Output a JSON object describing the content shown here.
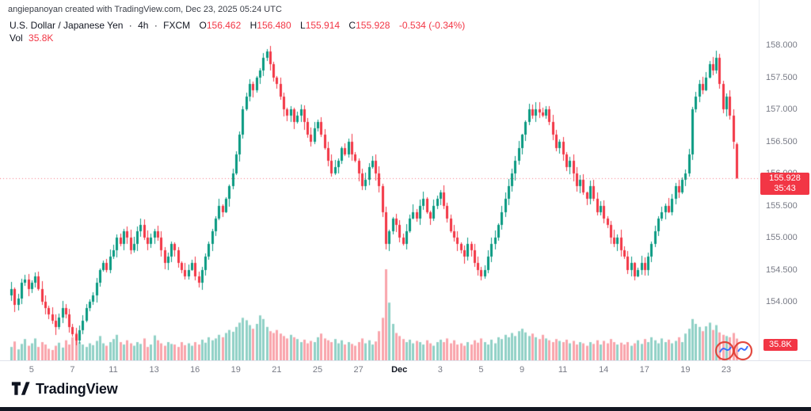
{
  "attribution": "angiepanoyan created with TradingView.com, Dec 23, 2025 05:24 UTC",
  "legend": {
    "symbol": "U.S. Dollar / Japanese Yen",
    "separator": "·",
    "interval": "4h",
    "exchange": "FXCM",
    "ohlc": {
      "o_label": "O",
      "o": "156.462",
      "h_label": "H",
      "h": "156.480",
      "l_label": "L",
      "l": "155.914",
      "c_label": "C",
      "c": "155.928"
    },
    "change": "-0.534 (-0.34%)",
    "vol_label": "Vol",
    "vol_value": "35.8K"
  },
  "price_badge": {
    "price": "155.928",
    "countdown": "35:43"
  },
  "volume_badge": "35.8K",
  "footer": {
    "brand": "TradingView"
  },
  "colors": {
    "up": "#089981",
    "down": "#f23645",
    "vol_up": "rgba(8,153,129,0.45)",
    "vol_down": "rgba(242,54,69,0.45)",
    "accent_red": "#f23645",
    "price_line": "rgba(242,54,69,0.65)",
    "axis_text": "#787b86",
    "text": "#131722"
  },
  "chart_data": {
    "type": "candlestick+volume",
    "title": "U.S. Dollar / Japanese Yen 4h FXCM",
    "symbol": "USD/JPY",
    "interval": "4h",
    "exchange": "FXCM",
    "ylim": [
      153.2,
      158.1
    ],
    "axis_ticks": [
      158.0,
      157.5,
      157.0,
      156.5,
      156.0,
      155.5,
      155.0,
      154.5,
      154.0
    ],
    "time_axis": [
      {
        "label": "5",
        "i": 6
      },
      {
        "label": "7",
        "i": 18
      },
      {
        "label": "11",
        "i": 30
      },
      {
        "label": "13",
        "i": 42
      },
      {
        "label": "16",
        "i": 54
      },
      {
        "label": "19",
        "i": 66
      },
      {
        "label": "21",
        "i": 78
      },
      {
        "label": "25",
        "i": 90
      },
      {
        "label": "27",
        "i": 102
      },
      {
        "label": "Dec",
        "i": 114,
        "bold": true
      },
      {
        "label": "3",
        "i": 126
      },
      {
        "label": "5",
        "i": 138
      },
      {
        "label": "9",
        "i": 150
      },
      {
        "label": "11",
        "i": 162
      },
      {
        "label": "14",
        "i": 174
      },
      {
        "label": "17",
        "i": 186
      },
      {
        "label": "19",
        "i": 198
      },
      {
        "label": "23",
        "i": 210
      }
    ],
    "first_open": 154.1,
    "closes": [
      154.2,
      153.95,
      154.05,
      154.3,
      154.35,
      154.2,
      154.3,
      154.4,
      154.2,
      154.0,
      153.9,
      153.8,
      153.7,
      153.6,
      153.75,
      153.9,
      153.8,
      153.6,
      153.5,
      153.4,
      153.55,
      153.7,
      153.9,
      154.0,
      154.1,
      154.3,
      154.5,
      154.6,
      154.5,
      154.7,
      154.8,
      155.0,
      154.9,
      155.1,
      155.0,
      154.8,
      154.9,
      155.1,
      155.2,
      155.0,
      154.9,
      155.0,
      155.1,
      155.0,
      154.8,
      154.6,
      154.7,
      154.9,
      154.8,
      154.6,
      154.5,
      154.4,
      154.5,
      154.6,
      154.4,
      154.3,
      154.5,
      154.7,
      154.9,
      155.1,
      155.3,
      155.5,
      155.4,
      155.6,
      155.8,
      156.0,
      156.3,
      156.6,
      157.0,
      157.2,
      157.4,
      157.3,
      157.5,
      157.6,
      157.8,
      157.9,
      157.7,
      157.5,
      157.4,
      157.2,
      157.0,
      156.9,
      157.0,
      156.8,
      156.9,
      157.0,
      156.8,
      156.6,
      156.5,
      156.7,
      156.8,
      156.6,
      156.4,
      156.2,
      156.0,
      156.1,
      156.2,
      156.4,
      156.3,
      156.5,
      156.3,
      156.2,
      156.0,
      155.8,
      155.9,
      156.1,
      156.2,
      156.0,
      155.8,
      155.4,
      154.9,
      155.1,
      155.3,
      155.2,
      155.0,
      154.9,
      155.1,
      155.3,
      155.4,
      155.3,
      155.5,
      155.6,
      155.4,
      155.3,
      155.5,
      155.6,
      155.7,
      155.5,
      155.3,
      155.1,
      155.0,
      154.9,
      154.8,
      154.7,
      154.9,
      154.8,
      154.6,
      154.5,
      154.4,
      154.5,
      154.7,
      154.9,
      155.0,
      155.2,
      155.4,
      155.6,
      155.8,
      156.0,
      156.2,
      156.4,
      156.6,
      156.8,
      157.0,
      156.9,
      157.0,
      156.95,
      156.9,
      157.0,
      156.8,
      156.6,
      156.4,
      156.5,
      156.3,
      156.1,
      156.2,
      156.0,
      155.8,
      155.9,
      155.7,
      155.6,
      155.8,
      155.6,
      155.4,
      155.5,
      155.3,
      155.2,
      155.0,
      154.9,
      155.0,
      154.8,
      154.7,
      154.5,
      154.6,
      154.4,
      154.5,
      154.6,
      154.5,
      154.7,
      154.9,
      155.1,
      155.3,
      155.4,
      155.5,
      155.4,
      155.6,
      155.8,
      155.7,
      155.9,
      156.0,
      156.3,
      157.0,
      157.2,
      157.4,
      157.3,
      157.5,
      157.7,
      157.6,
      157.8,
      157.4,
      157.0,
      157.2,
      156.9,
      156.5,
      155.928
    ],
    "volume_max": 150,
    "volumes": [
      22,
      31,
      18,
      27,
      35,
      24,
      28,
      36,
      22,
      30,
      26,
      19,
      17,
      24,
      29,
      21,
      33,
      26,
      38,
      45,
      30,
      26,
      22,
      28,
      25,
      32,
      40,
      28,
      24,
      30,
      35,
      42,
      30,
      26,
      33,
      28,
      24,
      30,
      27,
      36,
      22,
      26,
      41,
      33,
      28,
      24,
      30,
      27,
      26,
      22,
      30,
      25,
      28,
      24,
      30,
      26,
      34,
      29,
      38,
      33,
      36,
      42,
      38,
      45,
      50,
      47,
      55,
      62,
      70,
      66,
      58,
      52,
      60,
      74,
      68,
      55,
      48,
      45,
      50,
      44,
      40,
      36,
      42,
      38,
      35,
      30,
      34,
      28,
      32,
      30,
      38,
      44,
      36,
      33,
      30,
      35,
      28,
      33,
      26,
      30,
      27,
      24,
      30,
      36,
      28,
      33,
      26,
      31,
      48,
      70,
      150,
      95,
      60,
      45,
      40,
      35,
      30,
      34,
      28,
      32,
      30,
      26,
      33,
      28,
      24,
      30,
      34,
      30,
      36,
      28,
      33,
      26,
      28,
      24,
      30,
      26,
      33,
      29,
      36,
      30,
      26,
      34,
      28,
      38,
      35,
      42,
      38,
      45,
      40,
      48,
      52,
      46,
      40,
      44,
      38,
      35,
      42,
      36,
      33,
      30,
      35,
      32,
      30,
      34,
      28,
      32,
      26,
      30,
      28,
      24,
      30,
      27,
      33,
      26,
      32,
      28,
      35,
      30,
      26,
      29,
      26,
      30,
      24,
      28,
      33,
      27,
      35,
      30,
      38,
      33,
      28,
      36,
      30,
      34,
      28,
      32,
      38,
      30,
      44,
      52,
      68,
      60,
      55,
      48,
      56,
      62,
      50,
      58,
      46,
      42,
      40,
      38,
      45,
      35.8
    ],
    "last": {
      "open": 156.462,
      "high": 156.48,
      "low": 155.914,
      "close": 155.928,
      "change": -0.534,
      "change_pct": -0.34
    }
  }
}
